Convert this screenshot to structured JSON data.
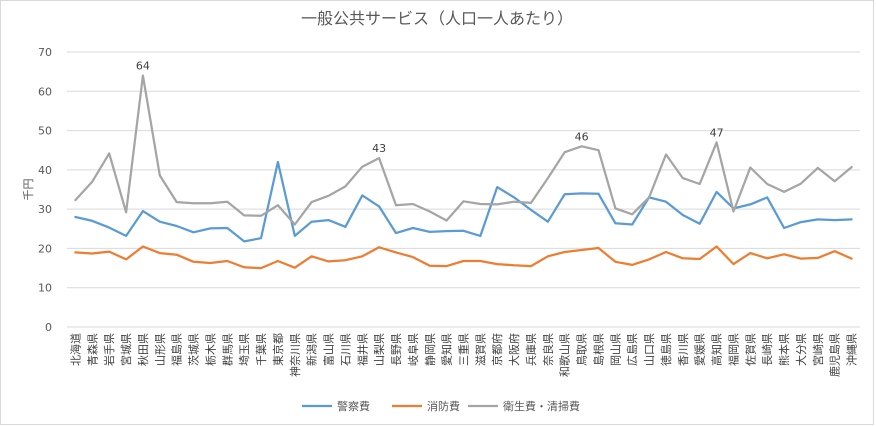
{
  "chart_data": {
    "type": "line",
    "title": "一般公共サービス（人口一人あたり）",
    "ylabel": "千円",
    "ylim": [
      0,
      70
    ],
    "yticks": [
      0,
      10,
      20,
      30,
      40,
      50,
      60,
      70
    ],
    "grid": true,
    "legend_position": "bottom",
    "categories": [
      "北海道",
      "青森県",
      "岩手県",
      "宮城県",
      "秋田県",
      "山形県",
      "福島県",
      "茨城県",
      "栃木県",
      "群馬県",
      "埼玉県",
      "千葉県",
      "東京都",
      "神奈川県",
      "新潟県",
      "富山県",
      "石川県",
      "福井県",
      "山梨県",
      "長野県",
      "岐阜県",
      "静岡県",
      "愛知県",
      "三重県",
      "滋賀県",
      "京都府",
      "大阪府",
      "兵庫県",
      "奈良県",
      "和歌山県",
      "鳥取県",
      "島根県",
      "岡山県",
      "広島県",
      "山口県",
      "徳島県",
      "香川県",
      "愛媛県",
      "高知県",
      "福岡県",
      "佐賀県",
      "長崎県",
      "熊本県",
      "大分県",
      "宮崎県",
      "鹿児島県",
      "沖縄県"
    ],
    "series": [
      {
        "name": "警察費",
        "color": "#5b9bd5",
        "values": [
          28.0,
          27.0,
          25.3,
          23.2,
          29.5,
          26.8,
          25.7,
          24.1,
          25.1,
          25.2,
          21.8,
          22.6,
          42.0,
          23.2,
          26.8,
          27.2,
          25.5,
          33.5,
          30.7,
          23.9,
          25.2,
          24.2,
          24.4,
          24.5,
          23.2,
          35.6,
          33.0,
          29.8,
          26.8,
          33.8,
          34.0,
          33.9,
          26.4,
          26.1,
          33.0,
          31.9,
          28.5,
          26.3,
          34.4,
          30.2,
          31.2,
          33.0,
          25.2,
          26.7,
          27.4,
          27.2,
          27.4
        ]
      },
      {
        "name": "消防費",
        "color": "#ed7d31",
        "values": [
          19.0,
          18.7,
          19.2,
          17.2,
          20.5,
          18.8,
          18.4,
          16.6,
          16.3,
          16.8,
          15.2,
          15.0,
          16.8,
          15.1,
          18.0,
          16.7,
          17.0,
          18.0,
          20.3,
          19.0,
          17.8,
          15.6,
          15.5,
          16.8,
          16.8,
          16.0,
          15.7,
          15.5,
          18.0,
          19.1,
          19.6,
          20.1,
          16.6,
          15.8,
          17.2,
          19.1,
          17.5,
          17.3,
          20.5,
          16.0,
          18.8,
          17.5,
          18.5,
          17.4,
          17.6,
          19.3,
          17.4
        ]
      },
      {
        "name": "衛生費・清掃費",
        "color": "#a5a5a5",
        "values": [
          32.3,
          37.0,
          44.2,
          29.2,
          64.0,
          38.6,
          31.8,
          31.5,
          31.5,
          31.9,
          28.4,
          28.3,
          31.0,
          26.1,
          31.8,
          33.4,
          35.8,
          40.8,
          43.0,
          31.0,
          31.3,
          29.4,
          27.1,
          32.0,
          31.3,
          31.2,
          31.9,
          31.6,
          37.9,
          44.5,
          46.0,
          45.0,
          30.2,
          28.7,
          33.0,
          43.9,
          37.9,
          36.4,
          47.0,
          29.4,
          40.6,
          36.4,
          34.4,
          36.5,
          40.5,
          37.1,
          40.7
        ]
      }
    ],
    "data_labels": [
      {
        "series": "衛生費・清掃費",
        "category": "秋田県",
        "text": "64"
      },
      {
        "series": "衛生費・清掃費",
        "category": "山梨県",
        "text": "43"
      },
      {
        "series": "衛生費・清掃費",
        "category": "鳥取県",
        "text": "46"
      },
      {
        "series": "衛生費・清掃費",
        "category": "高知県",
        "text": "47"
      }
    ]
  }
}
